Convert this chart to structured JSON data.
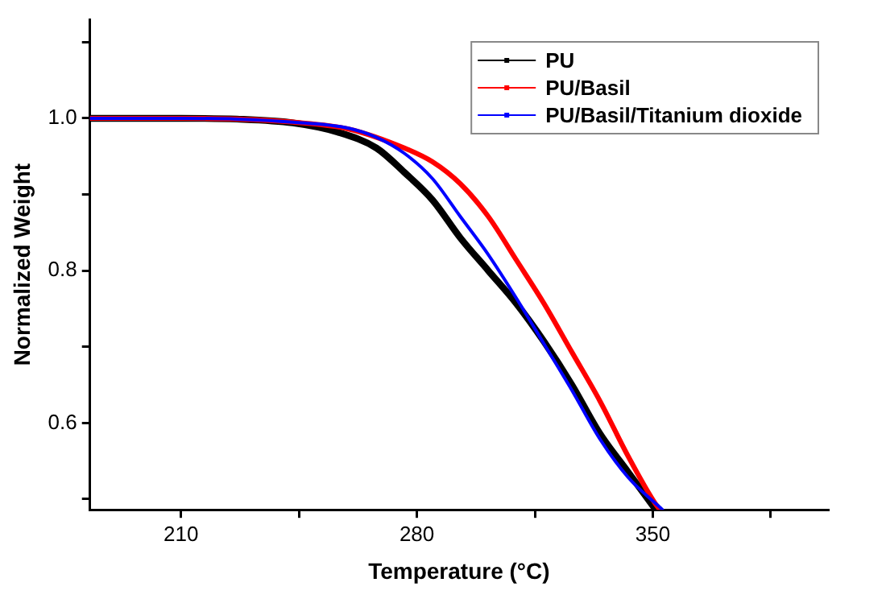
{
  "chart_data": {
    "type": "line",
    "xlabel": "Temperature (°C)",
    "ylabel": "Normalized Weight",
    "xlim": [
      183,
      402
    ],
    "ylim": [
      0.486,
      1.13
    ],
    "xticks": [
      210,
      {
        "value": 245,
        "label": null
      },
      280,
      {
        "value": 315,
        "label": null
      },
      350,
      {
        "value": 385,
        "label": null
      }
    ],
    "yticks": [
      {
        "value": 0.5,
        "label": null
      },
      0.6,
      {
        "value": 0.7,
        "label": null
      },
      0.8,
      {
        "value": 0.9,
        "label": null
      },
      {
        "value": 1,
        "label": "1.0"
      },
      {
        "value": 1.1,
        "label": null
      }
    ],
    "grid": false,
    "legend": "top right",
    "marker": "none",
    "line_style": "solid",
    "series": [
      {
        "name": "PU",
        "color": "#000000",
        "x": [
          183,
          210,
          226.6,
          243.2,
          256.4,
          268,
          276.3,
          284.6,
          292.9,
          301.2,
          309.5,
          317.7,
          326,
          334.3,
          342.6,
          350.9
        ],
        "values": [
          1,
          1,
          0.999,
          0.994,
          0.982,
          0.961,
          0.929,
          0.893,
          0.843,
          0.8,
          0.757,
          0.707,
          0.65,
          0.586,
          0.536,
          0.486
        ]
      },
      {
        "name": "PU/Basil",
        "color": "#ff0000",
        "x": [
          183,
          210,
          226.6,
          243.2,
          259.7,
          276.3,
          284.6,
          292.9,
          301.2,
          309.5,
          317.7,
          326,
          334.3,
          342.6,
          350.9,
          352.2
        ],
        "values": [
          1,
          1,
          0.999,
          0.995,
          0.986,
          0.961,
          0.943,
          0.914,
          0.871,
          0.814,
          0.757,
          0.693,
          0.629,
          0.557,
          0.493,
          0.486
        ]
      },
      {
        "name": "PU/Basil/Titanium dioxide",
        "color": "#0000ff",
        "x": [
          183,
          210,
          226.6,
          243.2,
          259.7,
          268,
          276.3,
          284.6,
          292.9,
          301.2,
          309.5,
          317.7,
          326,
          334.3,
          342.6,
          352.9
        ],
        "values": [
          1,
          1,
          0.999,
          0.995,
          0.987,
          0.975,
          0.954,
          0.921,
          0.871,
          0.821,
          0.764,
          0.704,
          0.643,
          0.579,
          0.529,
          0.486
        ]
      }
    ]
  }
}
